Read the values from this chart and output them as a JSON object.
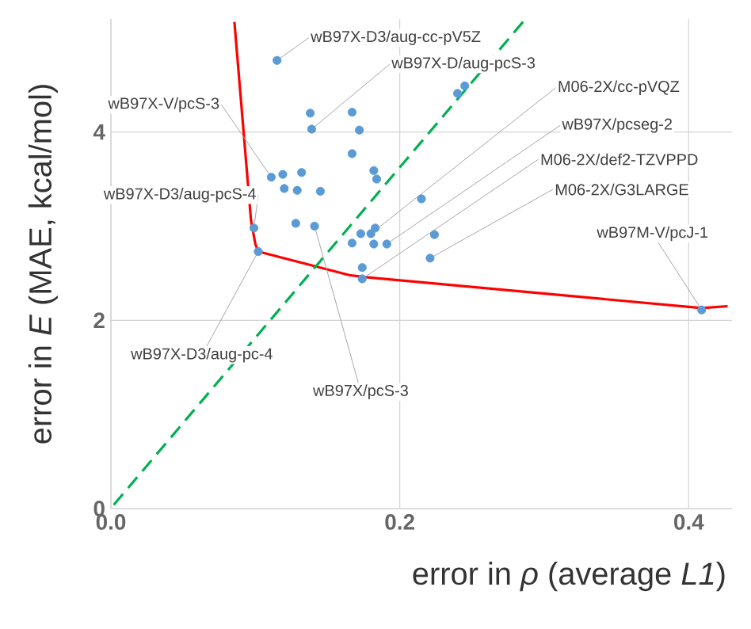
{
  "chart_data": {
    "type": "scatter",
    "xlabel": "error in *ρ* (average *L1*)",
    "ylabel": "error in *E* (MAE, kcal/mol)",
    "xlim": [
      0,
      0.43
    ],
    "ylim": [
      0,
      5.2
    ],
    "xticks": [
      {
        "value": 0,
        "label": "0.0"
      },
      0.2,
      0.4
    ],
    "yticks": [
      0,
      2,
      4
    ],
    "grid": true,
    "series": [
      {
        "color": "#5b9bd5",
        "marker": "circle",
        "x": [
          0.115,
          0.138,
          0.139,
          0.167,
          0.172,
          0.167,
          0.24,
          0.245,
          0.111,
          0.119,
          0.132,
          0.12,
          0.129,
          0.145,
          0.182,
          0.184,
          0.215,
          0.099,
          0.102,
          0.128,
          0.141,
          0.173,
          0.167,
          0.18,
          0.183,
          0.182,
          0.191,
          0.224,
          0.221,
          0.174,
          0.174,
          0.409
        ],
        "values": [
          4.76,
          4.2,
          4.03,
          4.21,
          4.02,
          3.77,
          4.41,
          4.49,
          3.52,
          3.55,
          3.57,
          3.4,
          3.38,
          3.37,
          3.59,
          3.5,
          3.29,
          2.98,
          2.73,
          3.03,
          3.0,
          2.92,
          2.82,
          2.92,
          2.98,
          2.81,
          2.81,
          2.91,
          2.66,
          2.56,
          2.44,
          2.11
        ]
      },
      {
        "type": "line",
        "color": "#ff0000",
        "marker": "none",
        "line_style": "solid",
        "x": [
          0.0855,
          0.097,
          0.1,
          0.102,
          0.165,
          0.175,
          0.409,
          0.427
        ],
        "values": [
          5.17,
          3.06,
          2.81,
          2.73,
          2.48,
          2.46,
          2.13,
          2.15
        ]
      },
      {
        "type": "line",
        "color": "#00b050",
        "marker": "none",
        "line_style": "dashed",
        "x": [
          0.002,
          0.287
        ],
        "values": [
          0.04,
          5.2
        ]
      }
    ],
    "annotations": [
      {
        "text": "wB97X-D3/aug-cc-pV5Z",
        "x": 0.115,
        "y": 4.76
      },
      {
        "text": "wB97X-D/aug-pcS-3",
        "x": 0.139,
        "y": 4.03
      },
      {
        "text": "wB97X-V/pcS-3",
        "x": 0.111,
        "y": 3.52
      },
      {
        "text": "wB97X-D3/aug-pcS-4",
        "x": 0.099,
        "y": 2.98
      },
      {
        "text": "wB97X-D3/aug-pc-4",
        "x": 0.102,
        "y": 2.73
      },
      {
        "text": "wB97X/pcS-3",
        "x": 0.141,
        "y": 3.0
      },
      {
        "text": "M06-2X/cc-pVQZ",
        "x": 0.18,
        "y": 2.92
      },
      {
        "text": "wB97X/pcseg-2",
        "x": 0.191,
        "y": 2.81
      },
      {
        "text": "M06-2X/def2-TZVPPD",
        "x": 0.174,
        "y": 2.44
      },
      {
        "text": "M06-2X/G3LARGE",
        "x": 0.221,
        "y": 2.66
      },
      {
        "text": "wB97M-V/pcJ-1",
        "x": 0.409,
        "y": 2.11
      }
    ]
  }
}
